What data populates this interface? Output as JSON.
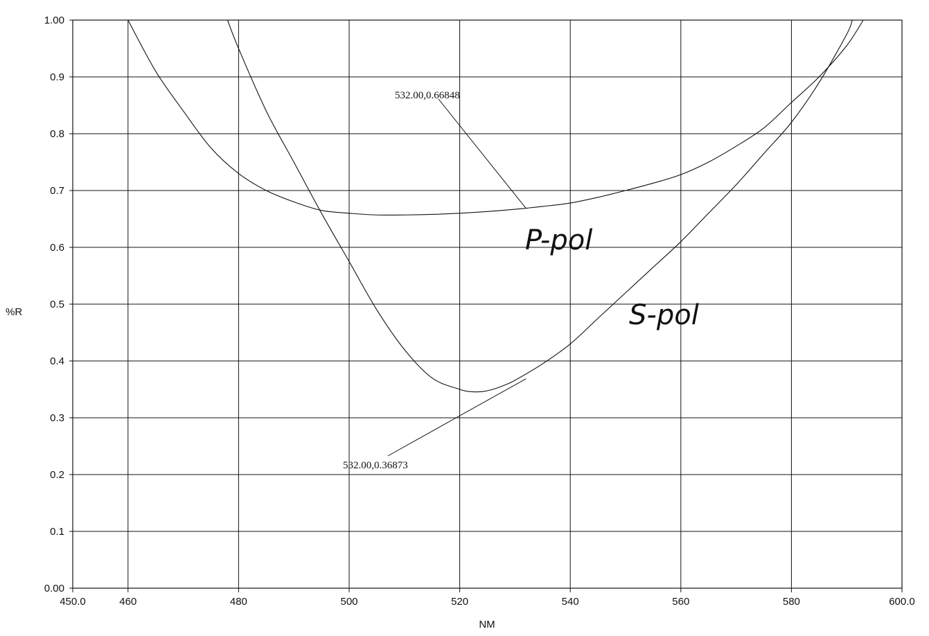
{
  "chart_data": {
    "type": "line",
    "title": "",
    "xlabel": "NM",
    "ylabel": "%R",
    "xlim": [
      450,
      600
    ],
    "ylim": [
      0,
      1
    ],
    "grid": true,
    "x_ticks": [
      {
        "value": 450,
        "label": "450.0"
      },
      {
        "value": 460,
        "label": "460"
      },
      {
        "value": 480,
        "label": "480"
      },
      {
        "value": 500,
        "label": "500"
      },
      {
        "value": 520,
        "label": "520"
      },
      {
        "value": 540,
        "label": "540"
      },
      {
        "value": 560,
        "label": "560"
      },
      {
        "value": 580,
        "label": "580"
      },
      {
        "value": 600,
        "label": "600.0"
      }
    ],
    "y_ticks": [
      {
        "value": 0,
        "label": "0.00"
      },
      {
        "value": 0.1,
        "label": "0.1"
      },
      {
        "value": 0.2,
        "label": "0.2"
      },
      {
        "value": 0.3,
        "label": "0.3"
      },
      {
        "value": 0.4,
        "label": "0.4"
      },
      {
        "value": 0.5,
        "label": "0.5"
      },
      {
        "value": 0.6,
        "label": "0.6"
      },
      {
        "value": 0.7,
        "label": "0.7"
      },
      {
        "value": 0.8,
        "label": "0.8"
      },
      {
        "value": 0.9,
        "label": "0.9"
      },
      {
        "value": 1.0,
        "label": "1.00"
      }
    ],
    "series": [
      {
        "name": "P-pol",
        "x": [
          460,
          465,
          470,
          475,
          480,
          485,
          490,
          495,
          500,
          505,
          510,
          515,
          520,
          525,
          530,
          535,
          540,
          545,
          550,
          555,
          560,
          565,
          570,
          575,
          580,
          585,
          590,
          593
        ],
        "y": [
          1.0,
          0.91,
          0.84,
          0.775,
          0.73,
          0.7,
          0.68,
          0.665,
          0.66,
          0.657,
          0.657,
          0.658,
          0.66,
          0.663,
          0.667,
          0.672,
          0.678,
          0.688,
          0.7,
          0.713,
          0.728,
          0.75,
          0.778,
          0.81,
          0.855,
          0.9,
          0.955,
          1.0
        ]
      },
      {
        "name": "S-pol",
        "x": [
          478,
          480,
          485,
          490,
          495,
          500,
          505,
          510,
          515,
          520,
          522,
          524,
          526,
          528,
          530,
          535,
          540,
          545,
          550,
          555,
          560,
          565,
          570,
          575,
          580,
          585,
          590,
          591
        ],
        "y": [
          1.0,
          0.95,
          0.84,
          0.75,
          0.66,
          0.575,
          0.49,
          0.42,
          0.37,
          0.35,
          0.346,
          0.346,
          0.35,
          0.357,
          0.366,
          0.395,
          0.43,
          0.475,
          0.52,
          0.565,
          0.61,
          0.66,
          0.71,
          0.765,
          0.82,
          0.89,
          0.975,
          1.0
        ]
      }
    ],
    "annotations": [
      {
        "text": "532.00,0.66848",
        "x": 532,
        "y": 0.66848
      },
      {
        "text": "532.00,0.36873",
        "x": 532,
        "y": 0.36873
      }
    ],
    "handwritten_labels": [
      "P-pol",
      "S-pol"
    ]
  }
}
